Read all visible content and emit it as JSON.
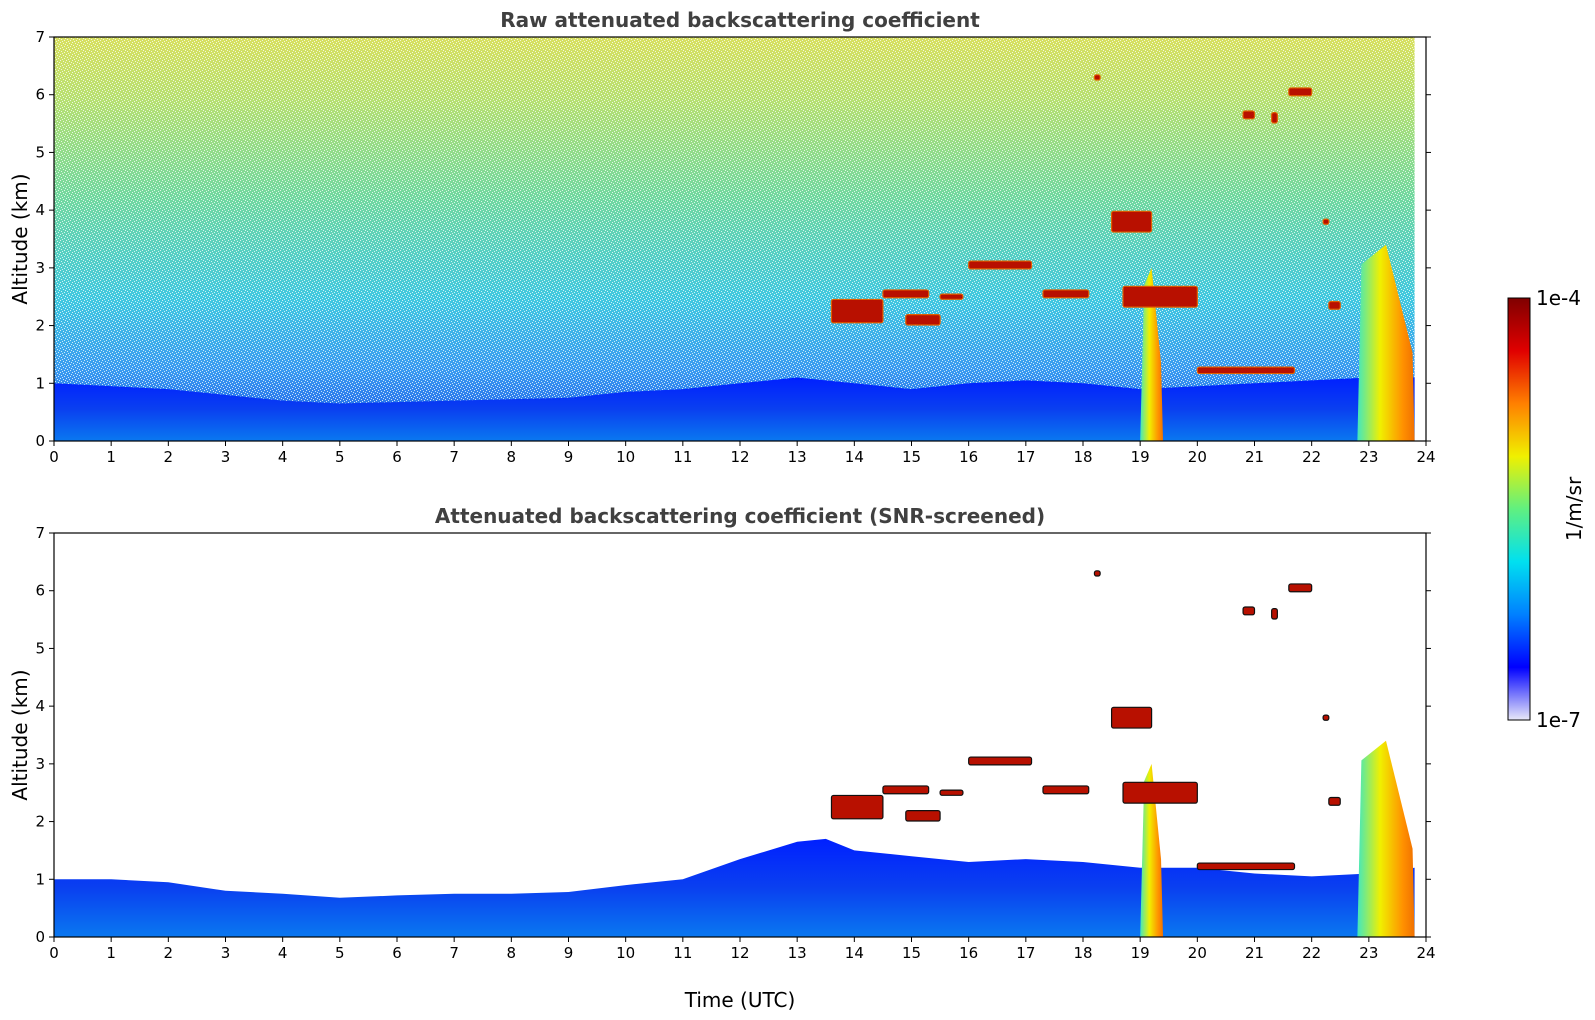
{
  "chart_data": [
    {
      "type": "heatmap",
      "title": "Raw attenuated backscattering coefficient",
      "xlabel": "",
      "ylabel": "Altitude (km)",
      "xlim": [
        0,
        24
      ],
      "ylim": [
        0,
        7
      ],
      "x_ticks": [
        "0",
        "1",
        "2",
        "3",
        "4",
        "5",
        "6",
        "7",
        "8",
        "9",
        "10",
        "11",
        "12",
        "13",
        "14",
        "15",
        "16",
        "17",
        "18",
        "19",
        "20",
        "21",
        "22",
        "23",
        "24"
      ],
      "y_ticks": [
        "0",
        "1",
        "2",
        "3",
        "4",
        "5",
        "6",
        "7"
      ],
      "data_extent_x": [
        0,
        23.8
      ],
      "features": {
        "boundary_layer_top_km": [
          [
            0,
            1.0
          ],
          [
            2,
            0.9
          ],
          [
            4,
            0.7
          ],
          [
            5,
            0.65
          ],
          [
            7,
            0.7
          ],
          [
            9,
            0.75
          ],
          [
            10,
            0.85
          ],
          [
            11,
            0.9
          ],
          [
            12,
            1.0
          ],
          [
            13,
            1.1
          ],
          [
            14,
            1.0
          ],
          [
            15,
            0.9
          ],
          [
            16,
            1.0
          ],
          [
            17,
            1.05
          ],
          [
            18,
            1.0
          ],
          [
            19,
            0.9
          ],
          [
            20,
            0.95
          ],
          [
            21,
            1.0
          ],
          [
            22,
            1.05
          ],
          [
            23,
            1.1
          ],
          [
            23.8,
            1.1
          ]
        ],
        "cloud_segments": [
          {
            "t": [
              13.6,
              14.5
            ],
            "alt": [
              1.8,
              2.7
            ]
          },
          {
            "t": [
              14.5,
              15.3
            ],
            "alt": [
              2.4,
              2.7
            ]
          },
          {
            "t": [
              14.9,
              15.5
            ],
            "alt": [
              1.9,
              2.3
            ]
          },
          {
            "t": [
              15.5,
              15.9
            ],
            "alt": [
              2.4,
              2.6
            ]
          },
          {
            "t": [
              16.0,
              17.1
            ],
            "alt": [
              2.9,
              3.2
            ]
          },
          {
            "t": [
              17.3,
              18.1
            ],
            "alt": [
              2.4,
              2.7
            ]
          },
          {
            "t": [
              18.5,
              19.2
            ],
            "alt": [
              3.4,
              4.2
            ]
          },
          {
            "t": [
              18.7,
              20.0
            ],
            "alt": [
              2.1,
              2.9
            ]
          },
          {
            "t": [
              20.0,
              21.7
            ],
            "alt": [
              1.1,
              1.35
            ]
          },
          {
            "t": [
              18.2,
              18.3
            ],
            "alt": [
              6.2,
              6.4
            ]
          },
          {
            "t": [
              20.8,
              21.0
            ],
            "alt": [
              5.5,
              5.8
            ]
          },
          {
            "t": [
              21.3,
              21.4
            ],
            "alt": [
              5.4,
              5.8
            ]
          },
          {
            "t": [
              21.6,
              22.0
            ],
            "alt": [
              5.9,
              6.2
            ]
          },
          {
            "t": [
              22.2,
              22.3
            ],
            "alt": [
              3.7,
              3.9
            ]
          },
          {
            "t": [
              22.3,
              22.5
            ],
            "alt": [
              2.2,
              2.5
            ]
          }
        ],
        "precipitation_shafts": [
          {
            "t": [
              19.0,
              19.4
            ],
            "alt_top": 3.0
          },
          {
            "t": [
              22.8,
              23.8
            ],
            "alt_top": 3.4
          }
        ]
      }
    },
    {
      "type": "heatmap",
      "title": "Attenuated backscattering coefficient (SNR-screened)",
      "xlabel": "Time (UTC)",
      "ylabel": "Altitude (km)",
      "xlim": [
        0,
        24
      ],
      "ylim": [
        0,
        7
      ],
      "x_ticks": [
        "0",
        "1",
        "2",
        "3",
        "4",
        "5",
        "6",
        "7",
        "8",
        "9",
        "10",
        "11",
        "12",
        "13",
        "14",
        "15",
        "16",
        "17",
        "18",
        "19",
        "20",
        "21",
        "22",
        "23",
        "24"
      ],
      "y_ticks": [
        "0",
        "1",
        "2",
        "3",
        "4",
        "5",
        "6",
        "7"
      ],
      "data_extent_x": [
        0,
        23.8
      ],
      "features": {
        "boundary_layer_top_km": [
          [
            0,
            1.0
          ],
          [
            1,
            1.0
          ],
          [
            2,
            0.95
          ],
          [
            3,
            0.8
          ],
          [
            4,
            0.75
          ],
          [
            5,
            0.68
          ],
          [
            6,
            0.72
          ],
          [
            7,
            0.75
          ],
          [
            8,
            0.75
          ],
          [
            9,
            0.78
          ],
          [
            10,
            0.9
          ],
          [
            11,
            1.0
          ],
          [
            12,
            1.35
          ],
          [
            13,
            1.65
          ],
          [
            13.5,
            1.7
          ],
          [
            14,
            1.5
          ],
          [
            15,
            1.4
          ],
          [
            16,
            1.3
          ],
          [
            17,
            1.35
          ],
          [
            18,
            1.3
          ],
          [
            19,
            1.2
          ],
          [
            20,
            1.2
          ],
          [
            21,
            1.1
          ],
          [
            22,
            1.05
          ],
          [
            23,
            1.1
          ],
          [
            23.8,
            1.2
          ]
        ],
        "cloud_segments": [
          {
            "t": [
              13.6,
              14.5
            ],
            "alt": [
              1.8,
              2.7
            ]
          },
          {
            "t": [
              14.5,
              15.3
            ],
            "alt": [
              2.4,
              2.7
            ]
          },
          {
            "t": [
              14.9,
              15.5
            ],
            "alt": [
              1.9,
              2.3
            ]
          },
          {
            "t": [
              15.5,
              15.9
            ],
            "alt": [
              2.4,
              2.6
            ]
          },
          {
            "t": [
              16.0,
              17.1
            ],
            "alt": [
              2.9,
              3.2
            ]
          },
          {
            "t": [
              17.3,
              18.1
            ],
            "alt": [
              2.4,
              2.7
            ]
          },
          {
            "t": [
              18.5,
              19.2
            ],
            "alt": [
              3.4,
              4.2
            ]
          },
          {
            "t": [
              18.7,
              20.0
            ],
            "alt": [
              2.1,
              2.9
            ]
          },
          {
            "t": [
              20.0,
              21.7
            ],
            "alt": [
              1.1,
              1.35
            ]
          },
          {
            "t": [
              18.2,
              18.3
            ],
            "alt": [
              6.2,
              6.4
            ]
          },
          {
            "t": [
              20.8,
              21.0
            ],
            "alt": [
              5.5,
              5.8
            ]
          },
          {
            "t": [
              21.3,
              21.4
            ],
            "alt": [
              5.4,
              5.8
            ]
          },
          {
            "t": [
              21.6,
              22.0
            ],
            "alt": [
              5.9,
              6.2
            ]
          },
          {
            "t": [
              22.2,
              22.3
            ],
            "alt": [
              3.7,
              3.9
            ]
          },
          {
            "t": [
              22.3,
              22.5
            ],
            "alt": [
              2.2,
              2.5
            ]
          }
        ],
        "precipitation_shafts": [
          {
            "t": [
              19.0,
              19.4
            ],
            "alt_top": 3.0
          },
          {
            "t": [
              22.8,
              23.8
            ],
            "alt_top": 3.4
          }
        ]
      }
    }
  ],
  "colorbar": {
    "label": "1/m/sr",
    "max_label": "1e-4",
    "min_label": "1e-7",
    "scale": "log",
    "colormap": "jet",
    "colors": [
      "#e8e8f8",
      "#0000ff",
      "#0080ff",
      "#00e0f0",
      "#60f080",
      "#f0f000",
      "#ff8000",
      "#e00000",
      "#800000"
    ]
  }
}
